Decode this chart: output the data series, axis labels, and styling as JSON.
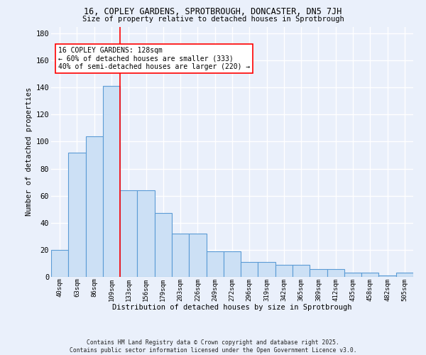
{
  "title1": "16, COPLEY GARDENS, SPROTBROUGH, DONCASTER, DN5 7JH",
  "title2": "Size of property relative to detached houses in Sprotbrough",
  "xlabel": "Distribution of detached houses by size in Sprotbrough",
  "ylabel": "Number of detached properties",
  "bar_vals": [
    20,
    92,
    104,
    141,
    64,
    64,
    47,
    32,
    32,
    19,
    19,
    11,
    11,
    9,
    9,
    6,
    6,
    3,
    3,
    1,
    3
  ],
  "bin_labels": [
    "40sqm",
    "63sqm",
    "86sqm",
    "109sqm",
    "133sqm",
    "156sqm",
    "179sqm",
    "203sqm",
    "226sqm",
    "249sqm",
    "272sqm",
    "296sqm",
    "319sqm",
    "342sqm",
    "365sqm",
    "389sqm",
    "412sqm",
    "435sqm",
    "458sqm",
    "482sqm",
    "505sqm"
  ],
  "bar_color": "#cce0f5",
  "bar_edge_color": "#5b9bd5",
  "red_line_x": 3.5,
  "annotation_text": "16 COPLEY GARDENS: 128sqm\n← 60% of detached houses are smaller (333)\n40% of semi-detached houses are larger (220) →",
  "footer": "Contains HM Land Registry data © Crown copyright and database right 2025.\nContains public sector information licensed under the Open Government Licence v3.0.",
  "bg_color": "#eaf0fb",
  "grid_color": "white",
  "ylim": [
    0,
    185
  ],
  "yticks": [
    0,
    20,
    40,
    60,
    80,
    100,
    120,
    140,
    160,
    180
  ]
}
